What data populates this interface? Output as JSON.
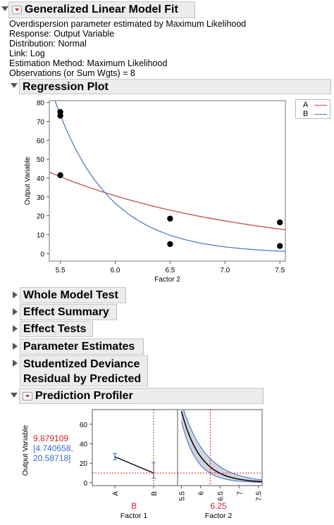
{
  "report": {
    "title": "Generalized Linear Model Fit",
    "info_lines": [
      "Overdispersion parameter estimated by Maximum Likelihood",
      "Response: Output Variable",
      "Distribution: Normal",
      "Link: Log",
      "Estimation Method: Maximum Likelihood",
      "Observations (or Sum Wgts) = 8"
    ]
  },
  "regression_plot": {
    "title": "Regression Plot",
    "legend": [
      {
        "label": "A",
        "color": "#c0504d"
      },
      {
        "label": "B",
        "color": "#4f81bd"
      }
    ]
  },
  "collapsed_sections": [
    {
      "label": "Whole Model Test"
    },
    {
      "label": "Effect Summary"
    },
    {
      "label": "Effect Tests"
    },
    {
      "label": "Parameter Estimates"
    },
    {
      "label": "Studentized Deviance",
      "label2": "Residual by Predicted"
    }
  ],
  "profiler": {
    "title": "Prediction Profiler",
    "ylabel": "Output Variable",
    "pred_value": "9.879109",
    "pred_ci": "[4.740658,",
    "pred_ci2": "20.58718]",
    "factor1_value": "B",
    "factor1_label": "Factor 1",
    "factor2_value": "6.25",
    "factor2_label": "Factor 2",
    "red_color": "#d0252b",
    "blue_color": "#3b6fc4"
  },
  "chart_data": [
    {
      "type": "scatter",
      "xlabel": "Factor 2",
      "ylabel": "Output Variable",
      "xlim": [
        5.4,
        7.55
      ],
      "ylim": [
        -4,
        81
      ],
      "xticks": [
        "5.5",
        "6.0",
        "6.5",
        "7.0",
        "7.5"
      ],
      "yticks": [
        "0",
        "10",
        "20",
        "30",
        "40",
        "50",
        "60",
        "70",
        "80"
      ],
      "points": [
        {
          "x": 5.5,
          "y": 75
        },
        {
          "x": 5.5,
          "y": 73
        },
        {
          "x": 5.5,
          "y": 41.5
        },
        {
          "x": 6.5,
          "y": 18.5
        },
        {
          "x": 6.5,
          "y": 5
        },
        {
          "x": 7.5,
          "y": 16.5
        },
        {
          "x": 7.5,
          "y": 4
        }
      ],
      "series": [
        {
          "name": "A",
          "model": "exp",
          "a": 40.7,
          "b": 0.571,
          "x0": 5.5
        },
        {
          "name": "B",
          "model": "exp",
          "a": 73.4,
          "b": 2.02,
          "x0": 5.5
        }
      ]
    },
    {
      "type": "line",
      "xlabel": "Factor 1",
      "categories": [
        "A",
        "B"
      ],
      "values": [
        26.5,
        9.9
      ],
      "ci_low": [
        23.5,
        4.7
      ],
      "ci_high": [
        30,
        20.6
      ],
      "ylim": [
        -3,
        75
      ],
      "yticks": [
        "0",
        "20",
        "40",
        "60"
      ],
      "reference_y": 9.879109
    },
    {
      "type": "line",
      "xlabel": "Factor 2",
      "xlim": [
        5.4,
        7.6
      ],
      "ylim": [
        -3,
        75
      ],
      "xticks": [
        "5.5",
        "6",
        "6.5",
        "7",
        "7.5"
      ],
      "curve": {
        "a": 73.4,
        "b": 2.02,
        "x0": 5.5
      },
      "band_low": {
        "a": 63,
        "b": 2.5
      },
      "band_high": {
        "a": 82,
        "b": 1.6
      },
      "reference_x": 6.25,
      "reference_y": 9.879109
    }
  ]
}
